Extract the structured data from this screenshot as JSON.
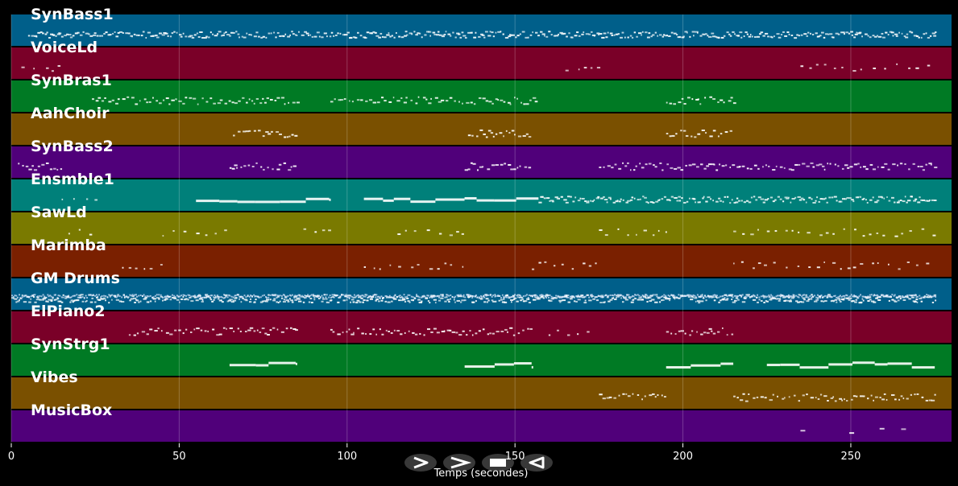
{
  "x_axis": {
    "label": "Temps (secondes)",
    "min": 0,
    "max": 280,
    "ticks": [
      0,
      50,
      100,
      150,
      200,
      250
    ]
  },
  "controls": [
    {
      "id": "play",
      "icon": "play-outline-icon"
    },
    {
      "id": "forward",
      "icon": "chevron-right-icon"
    },
    {
      "id": "stop",
      "icon": "stop-icon"
    },
    {
      "id": "rewind",
      "icon": "rewind-icon"
    }
  ],
  "tracks": [
    {
      "name": "SynBass1",
      "color": "#005f8a",
      "segments": [
        [
          5,
          275,
          "dense"
        ]
      ]
    },
    {
      "name": "VoiceLd",
      "color": "#7a0028",
      "segments": [
        [
          3,
          15,
          "sparse"
        ],
        [
          165,
          175,
          "sparse"
        ],
        [
          235,
          275,
          "sparse"
        ]
      ]
    },
    {
      "name": "SynBras1",
      "color": "#007a24",
      "segments": [
        [
          24,
          85,
          "medium"
        ],
        [
          95,
          157,
          "medium"
        ],
        [
          195,
          215,
          "medium"
        ]
      ]
    },
    {
      "name": "AahChoir",
      "color": "#7a5000",
      "segments": [
        [
          66,
          85,
          "medium"
        ],
        [
          136,
          155,
          "medium"
        ],
        [
          195,
          215,
          "medium"
        ]
      ]
    },
    {
      "name": "SynBass2",
      "color": "#50007a",
      "segments": [
        [
          2,
          15,
          "medium"
        ],
        [
          65,
          85,
          "medium"
        ],
        [
          135,
          155,
          "medium"
        ],
        [
          175,
          275,
          "medium"
        ]
      ]
    },
    {
      "name": "Ensmble1",
      "color": "#00807a",
      "segments": [
        [
          15,
          25,
          "sparse"
        ],
        [
          55,
          95,
          "long"
        ],
        [
          105,
          157,
          "long"
        ],
        [
          157,
          275,
          "dense"
        ]
      ]
    },
    {
      "name": "SawLd",
      "color": "#7a7a00",
      "segments": [
        [
          17,
          25,
          "sparse"
        ],
        [
          45,
          65,
          "sparse"
        ],
        [
          87,
          95,
          "sparse"
        ],
        [
          115,
          135,
          "sparse"
        ],
        [
          175,
          195,
          "sparse"
        ],
        [
          215,
          275,
          "sparse"
        ]
      ]
    },
    {
      "name": "Marimba",
      "color": "#7a2000",
      "segments": [
        [
          33,
          45,
          "sparse"
        ],
        [
          105,
          135,
          "sparse"
        ],
        [
          155,
          175,
          "sparse"
        ],
        [
          215,
          275,
          "sparse"
        ]
      ]
    },
    {
      "name": "GM Drums",
      "color": "#005f8a",
      "segments": [
        [
          0,
          275,
          "drums"
        ]
      ]
    },
    {
      "name": "ElPiano2",
      "color": "#7a0028",
      "segments": [
        [
          35,
          85,
          "medium"
        ],
        [
          95,
          155,
          "medium"
        ],
        [
          160,
          175,
          "sparse"
        ],
        [
          195,
          215,
          "medium"
        ]
      ]
    },
    {
      "name": "SynStrg1",
      "color": "#007a24",
      "segments": [
        [
          65,
          85,
          "long"
        ],
        [
          135,
          155,
          "long"
        ],
        [
          195,
          215,
          "long"
        ],
        [
          225,
          275,
          "long"
        ]
      ]
    },
    {
      "name": "Vibes",
      "color": "#7a5000",
      "segments": [
        [
          175,
          195,
          "medium"
        ],
        [
          215,
          275,
          "medium"
        ]
      ]
    },
    {
      "name": "MusicBox",
      "color": "#50007a",
      "segments": [
        [
          235,
          266,
          "rare"
        ]
      ]
    }
  ]
}
